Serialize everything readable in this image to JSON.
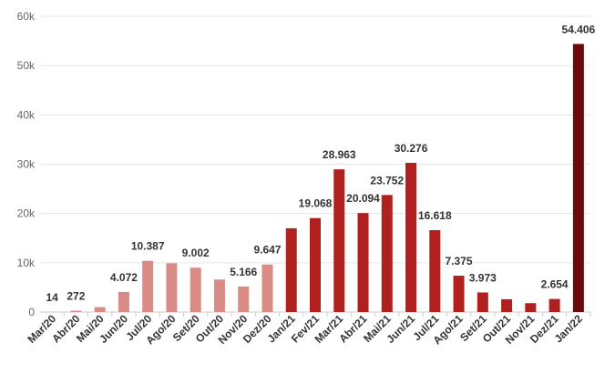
{
  "chart_data": {
    "type": "bar",
    "title": "",
    "xlabel": "",
    "ylabel": "",
    "ylim": [
      0,
      60000
    ],
    "yticks": [
      0,
      10000,
      20000,
      30000,
      40000,
      50000,
      60000
    ],
    "ytick_labels": [
      "0",
      "10k",
      "20k",
      "30k",
      "40k",
      "50k",
      "60k"
    ],
    "grid": true,
    "legend": "none",
    "categories": [
      "Mar/20",
      "Abr/20",
      "Mai/20",
      "Jun/20",
      "Jul/20",
      "Ago/20",
      "Set/20",
      "Out/20",
      "Nov/20",
      "Dez/20",
      "Jan/21",
      "Fev/21",
      "Mar/21",
      "Abr/21",
      "Mai/21",
      "Jun/21",
      "Jul/21",
      "Ago/21",
      "Set/21",
      "Out/21",
      "Nov/21",
      "Dez/21",
      "Jan/22"
    ],
    "values": [
      14,
      272,
      1000,
      4072,
      10387,
      9900,
      9002,
      6600,
      5166,
      9647,
      17000,
      19068,
      28963,
      20094,
      23752,
      30276,
      16618,
      7375,
      3973,
      2600,
      1800,
      2654,
      54406
    ],
    "data_labels": [
      "14",
      "272",
      "",
      "4.072",
      "10.387",
      "",
      "9.002",
      "",
      "5.166",
      "9.647",
      "",
      "19.068",
      "28.963",
      "20.094",
      "23.752",
      "30.276",
      "16.618",
      "7.375",
      "3.973",
      "",
      "",
      "2.654",
      "54.406"
    ],
    "bar_colors": [
      "#d98b86",
      "#d98b86",
      "#d98b86",
      "#d98b86",
      "#d98b86",
      "#d98b86",
      "#d98b86",
      "#d98b86",
      "#d98b86",
      "#d98b86",
      "#b0201f",
      "#b0201f",
      "#b0201f",
      "#b0201f",
      "#b0201f",
      "#b0201f",
      "#b0201f",
      "#b0201f",
      "#b0201f",
      "#b0201f",
      "#b0201f",
      "#b0201f",
      "#6b0a0a"
    ]
  }
}
